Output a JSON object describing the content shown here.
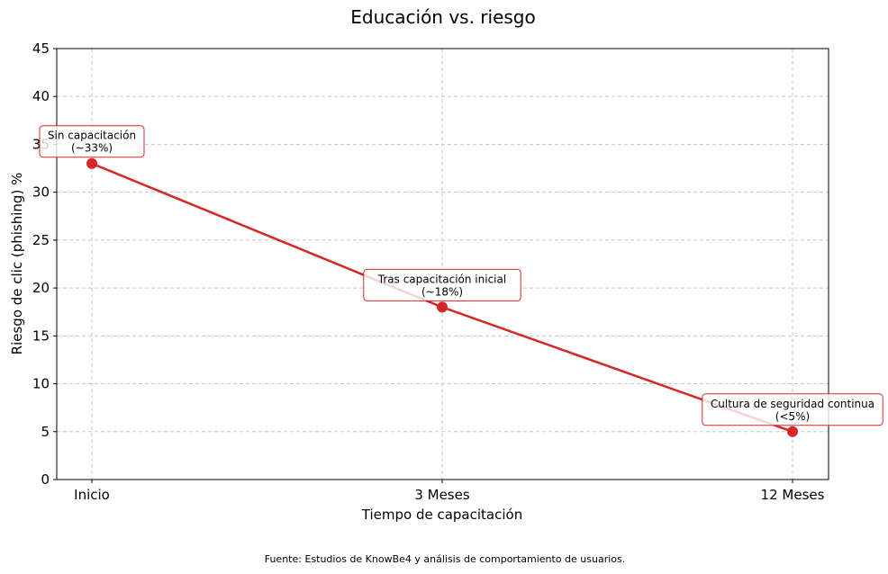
{
  "chart_data": {
    "type": "line",
    "title": "Educación vs. riesgo",
    "xlabel": "Tiempo de capacitación",
    "ylabel": "Riesgo de clic (phishing) %",
    "categories": [
      "Inicio",
      "3 Meses",
      "12 Meses"
    ],
    "values": [
      33,
      18,
      5
    ],
    "ylim": [
      0,
      45
    ],
    "yticks": [
      0,
      5,
      10,
      15,
      20,
      25,
      30,
      35,
      40,
      45
    ],
    "grid": true,
    "color": "#d62728",
    "annotations": [
      {
        "line1": "Sin capacitación",
        "line2": "(~33%)"
      },
      {
        "line1": "Tras capacitación inicial",
        "line2": "(~18%)"
      },
      {
        "line1": "Cultura de seguridad continua",
        "line2": "(<5%)"
      }
    ],
    "footnote": "Fuente: Estudios de KnowBe4 y análisis de comportamiento de usuarios."
  }
}
